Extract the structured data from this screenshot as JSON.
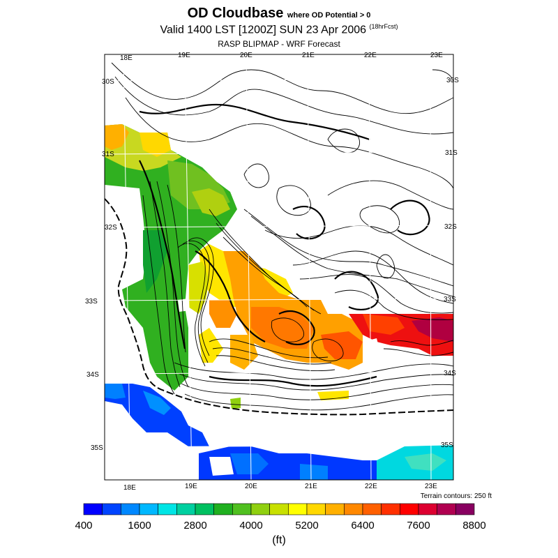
{
  "title": {
    "main": "OD Cloudbase",
    "main_note": "where OD Potential > 0",
    "valid": "Valid 1400 LST [1200Z] SUN 23 Apr 2006",
    "forecast_hours": "(18hrFcst)",
    "source": "RASP BLIPMAP - WRF Forecast"
  },
  "axes": {
    "longitude_labels": [
      "18E",
      "19E",
      "20E",
      "21E",
      "22E",
      "23E"
    ],
    "latitude_labels": [
      "30S",
      "31S",
      "32S",
      "33S",
      "34S",
      "35S"
    ]
  },
  "terrain_note": "Terrain contours: 250 ft",
  "colorbar": {
    "units": "(ft)",
    "labels": [
      "400",
      "1600",
      "2800",
      "4000",
      "5200",
      "6400",
      "7600",
      "8800"
    ],
    "colors": [
      "#0000ff",
      "#0044ff",
      "#0088ff",
      "#00b8ff",
      "#00e5e5",
      "#00d0a0",
      "#00c060",
      "#20b020",
      "#50c020",
      "#90d010",
      "#c8e000",
      "#ffff00",
      "#ffd800",
      "#ffb000",
      "#ff8800",
      "#ff6000",
      "#ff3000",
      "#ff0000",
      "#dd0030",
      "#b00050",
      "#880060"
    ]
  },
  "colors": {
    "frame": "#000000",
    "coastline": "#000000",
    "grid": "#ffffff"
  }
}
